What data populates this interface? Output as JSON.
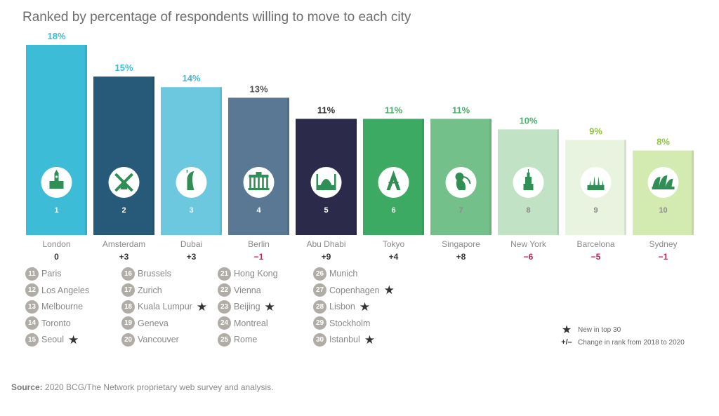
{
  "title": "Ranked by percentage of respondents willing to move to each city",
  "chart_data": {
    "type": "bar",
    "ylabel": "",
    "xlabel": "",
    "categories": [
      "London",
      "Amsterdam",
      "Dubai",
      "Berlin",
      "Abu Dhabi",
      "Tokyo",
      "Singapore",
      "New York",
      "Barcelona",
      "Sydney"
    ],
    "values": [
      18,
      15,
      14,
      13,
      11,
      11,
      11,
      10,
      9,
      8
    ],
    "value_labels": [
      "18%",
      "15%",
      "14%",
      "13%",
      "11%",
      "11%",
      "11%",
      "10%",
      "9%",
      "8%"
    ],
    "ranks": [
      "1",
      "2",
      "3",
      "4",
      "5",
      "6",
      "7",
      "8",
      "9",
      "10"
    ],
    "rank_changes": [
      "0",
      "+3",
      "+3",
      "−1",
      "+9",
      "+4",
      "+8",
      "−6",
      "−5",
      "−1"
    ],
    "change_colors": [
      "#333333",
      "#333333",
      "#333333",
      "#c0234e",
      "#333333",
      "#333333",
      "#333333",
      "#c0234e",
      "#c0234e",
      "#c0234e"
    ],
    "bar_colors": [
      "#3cbcd6",
      "#275a78",
      "#6cc8df",
      "#5a7893",
      "#2c2a4a",
      "#3daa63",
      "#73c08a",
      "#c2e2c6",
      "#e8f4df",
      "#d3ebb0"
    ],
    "label_colors": [
      "#3cbcd6",
      "#3cbcd6",
      "#3cbcd6",
      "#555555",
      "#333333",
      "#49b26a",
      "#49b26a",
      "#49b26a",
      "#8cc63f",
      "#8cc63f"
    ],
    "icons": [
      "big-ben-icon",
      "windmill-icon",
      "burj-al-arab-icon",
      "brandenburg-gate-icon",
      "grand-mosque-icon",
      "tokyo-tower-icon",
      "merlion-icon",
      "empire-state-icon",
      "sagrada-familia-icon",
      "opera-house-icon"
    ],
    "ylim": [
      0,
      18
    ]
  },
  "rest_of_top30": [
    [
      {
        "rank": "11",
        "city": "Paris",
        "new": false
      },
      {
        "rank": "12",
        "city": "Los Angeles",
        "new": false
      },
      {
        "rank": "13",
        "city": "Melbourne",
        "new": false
      },
      {
        "rank": "14",
        "city": "Toronto",
        "new": false
      },
      {
        "rank": "15",
        "city": "Seoul",
        "new": true
      }
    ],
    [
      {
        "rank": "16",
        "city": "Brussels",
        "new": false
      },
      {
        "rank": "17",
        "city": "Zurich",
        "new": false
      },
      {
        "rank": "18",
        "city": "Kuala Lumpur",
        "new": true
      },
      {
        "rank": "19",
        "city": "Geneva",
        "new": false
      },
      {
        "rank": "20",
        "city": "Vancouver",
        "new": false
      }
    ],
    [
      {
        "rank": "21",
        "city": "Hong Kong",
        "new": false
      },
      {
        "rank": "22",
        "city": "Vienna",
        "new": false
      },
      {
        "rank": "23",
        "city": "Beijing",
        "new": true
      },
      {
        "rank": "24",
        "city": "Montreal",
        "new": false
      },
      {
        "rank": "25",
        "city": "Rome",
        "new": false
      }
    ],
    [
      {
        "rank": "26",
        "city": "Munich",
        "new": false
      },
      {
        "rank": "27",
        "city": "Copenhagen",
        "new": true
      },
      {
        "rank": "28",
        "city": "Lisbon",
        "new": true
      },
      {
        "rank": "29",
        "city": "Stockholm",
        "new": false
      },
      {
        "rank": "30",
        "city": "Istanbul",
        "new": true
      }
    ]
  ],
  "legend": {
    "star_symbol": "★",
    "new_label": "New in top 30",
    "change_symbol": "+/–",
    "change_label": "Change in rank from 2018 to 2020"
  },
  "source": {
    "label": "Source:",
    "text": " 2020 BCG/The Network proprietary web survey and analysis."
  }
}
